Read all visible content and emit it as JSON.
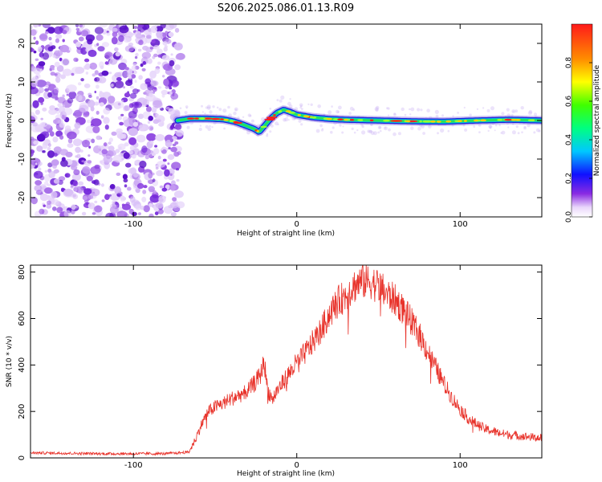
{
  "title": "S206.2025.086.01.13.R09",
  "chart_data": [
    {
      "type": "heatmap",
      "xlabel": "Height of straight line (km)",
      "ylabel": "Frequency (Hz)",
      "xlim": [
        -163,
        150
      ],
      "ylim": [
        -25,
        25
      ],
      "x_ticks": [
        -100,
        0,
        100
      ],
      "y_ticks": [
        -20,
        -10,
        0,
        10,
        20
      ],
      "colorbar": {
        "label": "Normalized spectral amplitude",
        "range": [
          0,
          1
        ],
        "ticks": [
          0.0,
          0.2,
          0.4,
          0.6,
          0.8
        ]
      },
      "noise_region_x": [
        -163,
        -73
      ],
      "tone_track": [
        [
          -73,
          0.0
        ],
        [
          -65,
          0.5
        ],
        [
          -55,
          0.5
        ],
        [
          -45,
          0.3
        ],
        [
          -38,
          -0.3
        ],
        [
          -32,
          -1.2
        ],
        [
          -26,
          -2.2
        ],
        [
          -23,
          -3.0
        ],
        [
          -20,
          -1.5
        ],
        [
          -16,
          0.5
        ],
        [
          -12,
          2.0
        ],
        [
          -8,
          2.8
        ],
        [
          -4,
          2.2
        ],
        [
          0,
          1.5
        ],
        [
          10,
          0.8
        ],
        [
          20,
          0.4
        ],
        [
          30,
          0.2
        ],
        [
          50,
          0.0
        ],
        [
          70,
          -0.2
        ],
        [
          90,
          -0.3
        ],
        [
          110,
          0.0
        ],
        [
          130,
          0.2
        ],
        [
          150,
          0.0
        ]
      ]
    },
    {
      "type": "line",
      "xlabel": "Height of straight line (km)",
      "ylabel": "SNR (10 * v/v)",
      "xlim": [
        -163,
        150
      ],
      "ylim": [
        0,
        830
      ],
      "x_ticks": [
        -100,
        0,
        100
      ],
      "y_ticks": [
        0,
        200,
        400,
        600,
        800
      ],
      "color": "#e8332b",
      "series": [
        {
          "values": [
            [
              -163,
              22
            ],
            [
              -140,
              20
            ],
            [
              -120,
              18
            ],
            [
              -100,
              18
            ],
            [
              -80,
              18
            ],
            [
              -66,
              25
            ],
            [
              -62,
              80
            ],
            [
              -58,
              150
            ],
            [
              -54,
              200
            ],
            [
              -50,
              220
            ],
            [
              -45,
              235
            ],
            [
              -40,
              255
            ],
            [
              -35,
              270
            ],
            [
              -30,
              290
            ],
            [
              -26,
              320
            ],
            [
              -22,
              360
            ],
            [
              -20,
              420
            ],
            [
              -18,
              300
            ],
            [
              -15,
              250
            ],
            [
              -12,
              290
            ],
            [
              -8,
              330
            ],
            [
              -4,
              370
            ],
            [
              0,
              410
            ],
            [
              5,
              450
            ],
            [
              10,
              500
            ],
            [
              15,
              550
            ],
            [
              20,
              620
            ],
            [
              25,
              670
            ],
            [
              30,
              700
            ],
            [
              35,
              740
            ],
            [
              40,
              760
            ],
            [
              45,
              760
            ],
            [
              50,
              740
            ],
            [
              55,
              705
            ],
            [
              60,
              680
            ],
            [
              65,
              640
            ],
            [
              70,
              590
            ],
            [
              75,
              530
            ],
            [
              80,
              460
            ],
            [
              85,
              390
            ],
            [
              90,
              320
            ],
            [
              95,
              260
            ],
            [
              100,
              210
            ],
            [
              105,
              170
            ],
            [
              110,
              145
            ],
            [
              115,
              125
            ],
            [
              120,
              115
            ],
            [
              125,
              105
            ],
            [
              130,
              100
            ],
            [
              140,
              92
            ],
            [
              150,
              85
            ]
          ]
        }
      ]
    }
  ]
}
